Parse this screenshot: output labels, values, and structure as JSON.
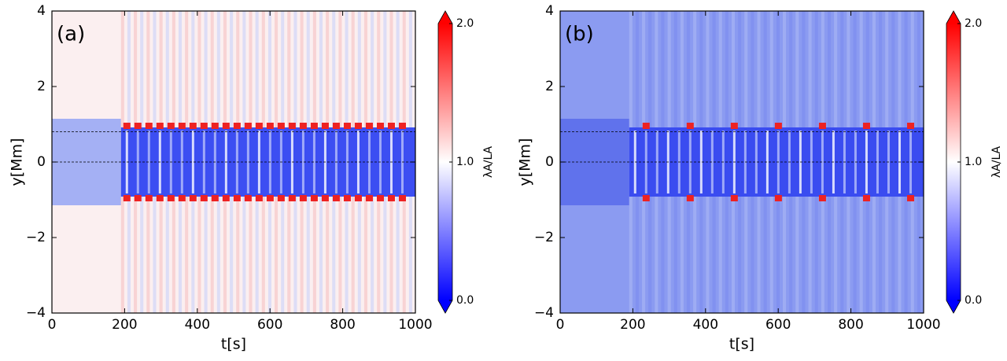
{
  "chart_data": [
    {
      "type": "heatmap",
      "panel_label": "(a)",
      "xlabel": "t[s]",
      "ylabel": "y[Mm]",
      "colorbar_label": "λA/LA",
      "xlim": [
        0,
        1000
      ],
      "xticks": [
        0,
        200,
        400,
        600,
        800,
        1000
      ],
      "ylim": [
        -4,
        4
      ],
      "yticks": [
        {
          "value": -4,
          "label": "−4"
        },
        {
          "value": -2,
          "label": "−2"
        },
        0,
        2,
        4
      ],
      "clim": [
        0,
        2
      ],
      "cticks": [
        {
          "value": 0,
          "label": "0.0"
        },
        {
          "value": 1,
          "label": "1.0"
        },
        {
          "value": 2,
          "label": "2.0"
        }
      ],
      "colormap": [
        "#0000ff",
        "#ffffff",
        "#ff0000"
      ],
      "hlines": [
        0,
        0.8
      ]
    },
    {
      "type": "heatmap",
      "panel_label": "(b)",
      "xlabel": "t[s]",
      "ylabel": "y[Mm]",
      "colorbar_label": "λA/LA",
      "xlim": [
        0,
        1000
      ],
      "xticks": [
        0,
        200,
        400,
        600,
        800,
        1000
      ],
      "ylim": [
        -4,
        4
      ],
      "yticks": [
        {
          "value": -4,
          "label": "−4"
        },
        {
          "value": -2,
          "label": "−2"
        },
        0,
        2,
        4
      ],
      "clim": [
        0,
        2
      ],
      "cticks": [
        {
          "value": 0,
          "label": "0.0"
        },
        {
          "value": 1,
          "label": "1.0"
        },
        {
          "value": 2,
          "label": "2.0"
        }
      ],
      "colormap": [
        "#0000ff",
        "#ffffff",
        "#ff0000"
      ],
      "hlines": [
        0,
        0.8
      ]
    }
  ]
}
